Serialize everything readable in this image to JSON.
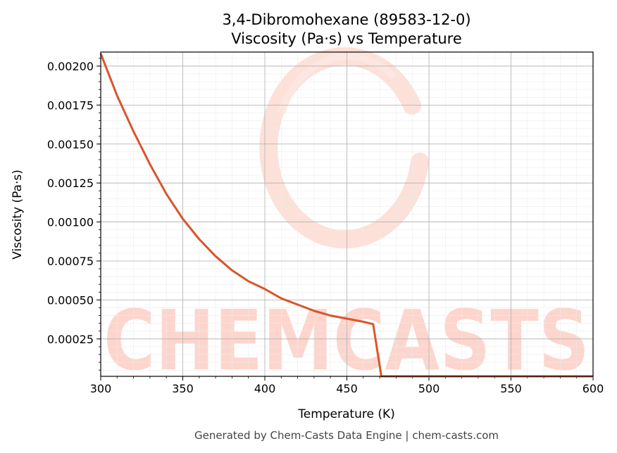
{
  "chart_data": {
    "type": "line",
    "title_line1": "3,4-Dibromohexane (89583-12-0)",
    "title_line2": "Viscosity (Pa·s) vs Temperature",
    "xlabel": "Temperature (K)",
    "ylabel": "Viscosity (Pa·s)",
    "xlim": [
      300,
      600
    ],
    "ylim": [
      1e-05,
      0.00209
    ],
    "x_ticks": [
      300,
      350,
      400,
      450,
      500,
      550,
      600
    ],
    "x_tick_labels": [
      "300",
      "350",
      "400",
      "450",
      "500",
      "550",
      "600"
    ],
    "y_ticks": [
      0.00025,
      0.0005,
      0.00075,
      0.001,
      0.00125,
      0.0015,
      0.00175,
      0.002
    ],
    "y_tick_labels": [
      "0.00025",
      "0.00050",
      "0.00075",
      "0.00100",
      "0.00125",
      "0.00150",
      "0.00175",
      "0.00200"
    ],
    "grid": true,
    "line_color": "#d9552b",
    "series": [
      {
        "x": [
          300,
          310,
          320,
          330,
          340,
          350,
          360,
          370,
          380,
          390,
          400,
          410,
          420,
          430,
          440,
          450,
          460,
          466,
          471,
          480,
          500,
          550,
          600
        ],
        "y": [
          0.00208,
          0.00181,
          0.00158,
          0.00137,
          0.00118,
          0.00102,
          0.00089,
          0.00078,
          0.00069,
          0.00062,
          0.00057,
          0.00051,
          0.00047,
          0.00043,
          0.0004,
          0.00038,
          0.00036,
          0.000345,
          1e-05,
          1e-05,
          1e-05,
          1e-05,
          1e-05
        ]
      }
    ]
  },
  "watermark": "CHEMCASTS",
  "footer": "Generated by Chem-Casts Data Engine | chem-casts.com"
}
